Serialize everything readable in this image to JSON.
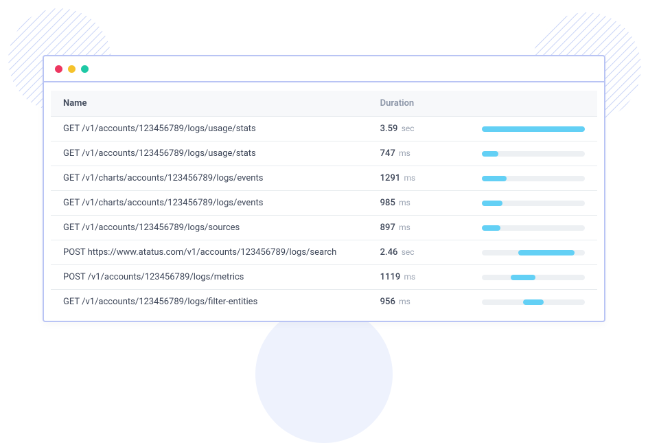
{
  "colors": {
    "window_border": "#b9c4f4",
    "header_bg": "#f7f8fa",
    "header_text": "#8a94a6",
    "row_text": "#4a5568",
    "row_border": "#e8ecef",
    "bar_track": "#edf0f3",
    "bar_fill": "#63d0f5",
    "blob": "#eef2fd",
    "hatch_stroke": "#c9d4f7",
    "dot_red": "#ed3660",
    "dot_yellow": "#f5c22b",
    "dot_green": "#1ec8a5"
  },
  "headers": {
    "name": "Name",
    "duration": "Duration"
  },
  "bar_track_width": 150,
  "rows": [
    {
      "name": "GET /v1/accounts/123456789/logs/usage/stats",
      "duration_value": "3.59",
      "duration_unit": "sec",
      "bar_offset_pct": 0,
      "bar_width_pct": 100
    },
    {
      "name": "GET /v1/accounts/123456789/logs/usage/stats",
      "duration_value": "747",
      "duration_unit": "ms",
      "bar_offset_pct": 0,
      "bar_width_pct": 16
    },
    {
      "name": "GET /v1/charts/accounts/123456789/logs/events",
      "duration_value": "1291",
      "duration_unit": "ms",
      "bar_offset_pct": 0,
      "bar_width_pct": 24
    },
    {
      "name": "GET /v1/charts/accounts/123456789/logs/events",
      "duration_value": "985",
      "duration_unit": "ms",
      "bar_offset_pct": 0,
      "bar_width_pct": 20
    },
    {
      "name": "GET /v1/accounts/123456789/logs/sources",
      "duration_value": "897",
      "duration_unit": "ms",
      "bar_offset_pct": 0,
      "bar_width_pct": 18
    },
    {
      "name": "POST https://www.atatus.com/v1/accounts/123456789/logs/search",
      "duration_value": "2.46",
      "duration_unit": "sec",
      "bar_offset_pct": 35,
      "bar_width_pct": 55
    },
    {
      "name": "POST /v1/accounts/123456789/logs/metrics",
      "duration_value": "1119",
      "duration_unit": "ms",
      "bar_offset_pct": 28,
      "bar_width_pct": 24
    },
    {
      "name": "GET /v1/accounts/123456789/logs/filter-entities",
      "duration_value": "956",
      "duration_unit": "ms",
      "bar_offset_pct": 40,
      "bar_width_pct": 20
    }
  ]
}
